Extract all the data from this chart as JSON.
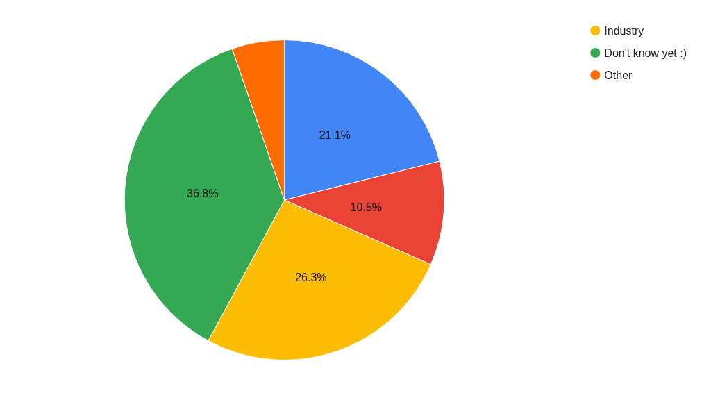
{
  "chart_data": {
    "type": "pie",
    "categories": [
      null,
      null,
      "Industry",
      "Don't know yet :)",
      "Other"
    ],
    "values": [
      21.1,
      10.5,
      26.3,
      36.8,
      5.3
    ],
    "colors": [
      "#4285f4",
      "#ea4335",
      "#fbbc04",
      "#34a853",
      "#ff6d01"
    ],
    "value_labels": [
      "21.1%",
      "10.5%",
      "26.3%",
      "36.8%",
      null
    ],
    "legend": "top right"
  }
}
